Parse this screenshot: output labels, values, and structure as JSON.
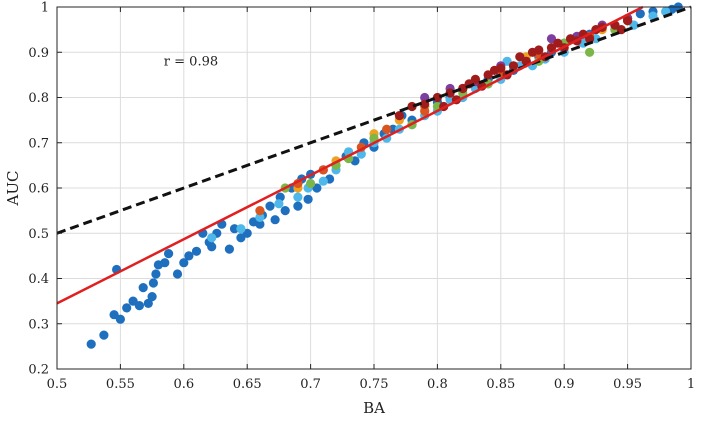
{
  "chart_data": {
    "type": "scatter",
    "title": "",
    "xlabel": "BA",
    "ylabel": "AUC",
    "xlim": [
      0.5,
      1.0
    ],
    "ylim": [
      0.2,
      1.0
    ],
    "x_ticks": [
      0.5,
      0.55,
      0.6,
      0.65,
      0.7,
      0.75,
      0.8,
      0.85,
      0.9,
      0.95,
      1
    ],
    "x_tick_labels": [
      "0.5",
      "0.55",
      "0.6",
      "0.65",
      "0.7",
      "0.75",
      "0.8",
      "0.85",
      "0.9",
      "0.95",
      "1"
    ],
    "y_ticks": [
      0.2,
      0.3,
      0.4,
      0.5,
      0.6,
      0.7,
      0.8,
      0.9,
      1
    ],
    "y_tick_labels": [
      "0.2",
      "0.3",
      "0.4",
      "0.5",
      "0.6",
      "0.7",
      "0.8",
      "0.9",
      "1"
    ],
    "grid": true,
    "legend": "none",
    "annotations": [
      {
        "text": "r = 0.98",
        "x": 0.6,
        "y": 0.88
      }
    ],
    "lines": [
      {
        "name": "",
        "style": "dashed",
        "color": "#111111",
        "x": [
          0.5,
          1.0
        ],
        "y": [
          0.5,
          1.0
        ]
      },
      {
        "name": "",
        "style": "solid",
        "color": "#e02020",
        "x": [
          0.5,
          0.962
        ],
        "y": [
          0.345,
          1.0
        ]
      }
    ],
    "series": [
      {
        "name": "",
        "color": "#1f6fbf",
        "points": [
          [
            0.527,
            0.255
          ],
          [
            0.537,
            0.275
          ],
          [
            0.545,
            0.32
          ],
          [
            0.55,
            0.31
          ],
          [
            0.547,
            0.42
          ],
          [
            0.555,
            0.335
          ],
          [
            0.56,
            0.35
          ],
          [
            0.565,
            0.34
          ],
          [
            0.568,
            0.38
          ],
          [
            0.572,
            0.345
          ],
          [
            0.575,
            0.36
          ],
          [
            0.576,
            0.39
          ],
          [
            0.578,
            0.41
          ],
          [
            0.58,
            0.43
          ],
          [
            0.585,
            0.435
          ],
          [
            0.588,
            0.455
          ],
          [
            0.595,
            0.41
          ],
          [
            0.6,
            0.435
          ],
          [
            0.604,
            0.45
          ],
          [
            0.61,
            0.46
          ],
          [
            0.615,
            0.5
          ],
          [
            0.62,
            0.48
          ],
          [
            0.622,
            0.47
          ],
          [
            0.626,
            0.5
          ],
          [
            0.63,
            0.52
          ],
          [
            0.636,
            0.465
          ],
          [
            0.64,
            0.51
          ],
          [
            0.645,
            0.49
          ],
          [
            0.65,
            0.5
          ],
          [
            0.655,
            0.525
          ],
          [
            0.66,
            0.52
          ],
          [
            0.662,
            0.54
          ],
          [
            0.668,
            0.56
          ],
          [
            0.672,
            0.53
          ],
          [
            0.676,
            0.58
          ],
          [
            0.68,
            0.55
          ],
          [
            0.685,
            0.6
          ],
          [
            0.69,
            0.56
          ],
          [
            0.693,
            0.62
          ],
          [
            0.698,
            0.575
          ],
          [
            0.7,
            0.63
          ],
          [
            0.705,
            0.6
          ],
          [
            0.71,
            0.64
          ],
          [
            0.715,
            0.62
          ],
          [
            0.72,
            0.65
          ],
          [
            0.728,
            0.67
          ],
          [
            0.735,
            0.66
          ],
          [
            0.742,
            0.7
          ],
          [
            0.75,
            0.69
          ],
          [
            0.758,
            0.72
          ],
          [
            0.765,
            0.73
          ],
          [
            0.772,
            0.76
          ],
          [
            0.78,
            0.75
          ],
          [
            0.79,
            0.78
          ],
          [
            0.8,
            0.79
          ],
          [
            0.81,
            0.8
          ],
          [
            0.82,
            0.82
          ],
          [
            0.83,
            0.83
          ],
          [
            0.84,
            0.84
          ],
          [
            0.85,
            0.85
          ],
          [
            0.86,
            0.86
          ],
          [
            0.87,
            0.88
          ],
          [
            0.88,
            0.89
          ],
          [
            0.89,
            0.9
          ],
          [
            0.9,
            0.92
          ],
          [
            0.91,
            0.93
          ],
          [
            0.92,
            0.94
          ],
          [
            0.93,
            0.955
          ],
          [
            0.94,
            0.96
          ],
          [
            0.95,
            0.975
          ],
          [
            0.96,
            0.985
          ],
          [
            0.97,
            0.99
          ],
          [
            0.985,
            0.995
          ],
          [
            0.99,
            1.0
          ]
        ]
      },
      {
        "name": "",
        "color": "#4fb8ea",
        "points": [
          [
            0.622,
            0.49
          ],
          [
            0.645,
            0.51
          ],
          [
            0.66,
            0.535
          ],
          [
            0.675,
            0.565
          ],
          [
            0.69,
            0.58
          ],
          [
            0.698,
            0.6
          ],
          [
            0.71,
            0.615
          ],
          [
            0.72,
            0.64
          ],
          [
            0.73,
            0.68
          ],
          [
            0.74,
            0.675
          ],
          [
            0.75,
            0.7
          ],
          [
            0.76,
            0.71
          ],
          [
            0.77,
            0.73
          ],
          [
            0.78,
            0.74
          ],
          [
            0.79,
            0.76
          ],
          [
            0.8,
            0.77
          ],
          [
            0.81,
            0.795
          ],
          [
            0.82,
            0.8
          ],
          [
            0.83,
            0.82
          ],
          [
            0.84,
            0.83
          ],
          [
            0.85,
            0.84
          ],
          [
            0.855,
            0.88
          ],
          [
            0.865,
            0.87
          ],
          [
            0.875,
            0.87
          ],
          [
            0.885,
            0.885
          ],
          [
            0.9,
            0.9
          ],
          [
            0.915,
            0.92
          ],
          [
            0.925,
            0.93
          ],
          [
            0.94,
            0.95
          ],
          [
            0.955,
            0.96
          ],
          [
            0.97,
            0.98
          ],
          [
            0.98,
            0.99
          ]
        ]
      },
      {
        "name": "",
        "color": "#f0a020",
        "points": [
          [
            0.69,
            0.6
          ],
          [
            0.72,
            0.66
          ],
          [
            0.75,
            0.72
          ],
          [
            0.77,
            0.75
          ],
          [
            0.79,
            0.78
          ],
          [
            0.81,
            0.81
          ],
          [
            0.83,
            0.84
          ],
          [
            0.85,
            0.86
          ],
          [
            0.87,
            0.89
          ],
          [
            0.89,
            0.91
          ],
          [
            0.91,
            0.93
          ],
          [
            0.93,
            0.95
          ],
          [
            0.95,
            0.97
          ]
        ]
      },
      {
        "name": "",
        "color": "#7ab648",
        "points": [
          [
            0.68,
            0.6
          ],
          [
            0.7,
            0.61
          ],
          [
            0.72,
            0.65
          ],
          [
            0.73,
            0.665
          ],
          [
            0.75,
            0.71
          ],
          [
            0.78,
            0.74
          ],
          [
            0.8,
            0.78
          ],
          [
            0.82,
            0.81
          ],
          [
            0.84,
            0.83
          ],
          [
            0.86,
            0.87
          ],
          [
            0.88,
            0.88
          ],
          [
            0.9,
            0.92
          ],
          [
            0.92,
            0.9
          ],
          [
            0.94,
            0.95
          ]
        ]
      },
      {
        "name": "",
        "color": "#7b3fa0",
        "points": [
          [
            0.79,
            0.8
          ],
          [
            0.81,
            0.82
          ],
          [
            0.83,
            0.835
          ],
          [
            0.85,
            0.87
          ],
          [
            0.87,
            0.88
          ],
          [
            0.89,
            0.93
          ],
          [
            0.91,
            0.935
          ],
          [
            0.93,
            0.96
          ],
          [
            0.95,
            0.975
          ]
        ]
      },
      {
        "name": "",
        "color": "#d9541e",
        "points": [
          [
            0.66,
            0.55
          ],
          [
            0.69,
            0.61
          ],
          [
            0.71,
            0.64
          ],
          [
            0.74,
            0.69
          ],
          [
            0.76,
            0.73
          ],
          [
            0.79,
            0.77
          ],
          [
            0.82,
            0.82
          ],
          [
            0.85,
            0.855
          ],
          [
            0.88,
            0.895
          ],
          [
            0.92,
            0.935
          ],
          [
            0.95,
            0.97
          ]
        ]
      },
      {
        "name": "",
        "color": "#a01c1c",
        "points": [
          [
            0.77,
            0.76
          ],
          [
            0.78,
            0.78
          ],
          [
            0.79,
            0.785
          ],
          [
            0.8,
            0.8
          ],
          [
            0.805,
            0.78
          ],
          [
            0.81,
            0.81
          ],
          [
            0.815,
            0.795
          ],
          [
            0.82,
            0.82
          ],
          [
            0.825,
            0.83
          ],
          [
            0.83,
            0.84
          ],
          [
            0.835,
            0.825
          ],
          [
            0.84,
            0.85
          ],
          [
            0.845,
            0.86
          ],
          [
            0.85,
            0.865
          ],
          [
            0.855,
            0.85
          ],
          [
            0.86,
            0.87
          ],
          [
            0.865,
            0.89
          ],
          [
            0.87,
            0.88
          ],
          [
            0.875,
            0.9
          ],
          [
            0.88,
            0.905
          ],
          [
            0.885,
            0.89
          ],
          [
            0.89,
            0.91
          ],
          [
            0.895,
            0.92
          ],
          [
            0.9,
            0.91
          ],
          [
            0.905,
            0.93
          ],
          [
            0.91,
            0.925
          ],
          [
            0.915,
            0.94
          ],
          [
            0.92,
            0.93
          ],
          [
            0.925,
            0.95
          ],
          [
            0.93,
            0.955
          ],
          [
            0.94,
            0.96
          ],
          [
            0.945,
            0.95
          ],
          [
            0.95,
            0.97
          ]
        ]
      }
    ]
  }
}
